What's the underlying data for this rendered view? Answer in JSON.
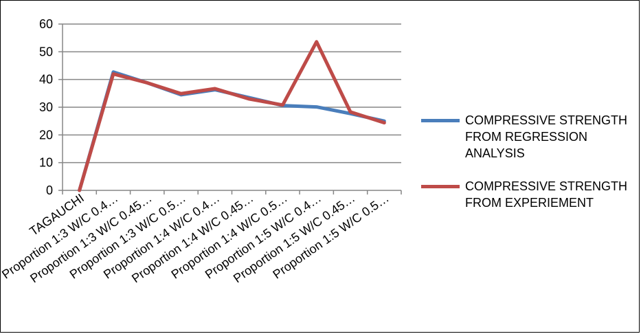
{
  "chart_data": {
    "type": "line",
    "categories": [
      "TAGAUCHI",
      "Proportion 1:3   W/C 0.4…",
      "Proportion 1:3   W/C 0.45…",
      "Proportion 1:3   W/C 0.5…",
      "Proportion 1:4    W/C 0.4…",
      "Proportion 1:4   W/C 0.45…",
      "Proportion 1:4    W/C 0.5…",
      "Proportion 1:5   W/C 0.4…",
      "Proportion 1:5   W/C 0.45…",
      "Proportion 1:5    W/C 0.5…"
    ],
    "series": [
      {
        "name": "COMPRESSIVE STRENGTH FROM REGRESSION ANALYSIS",
        "color": "#4a7ebb",
        "values": [
          0,
          42.7,
          38.8,
          34.5,
          36.3,
          33.5,
          30.6,
          30.1,
          27.7,
          25.0
        ]
      },
      {
        "name": "COMPRESSIVE STRENGTH FROM EXPERIEMENT",
        "color": "#be4b48",
        "values": [
          0,
          42.0,
          38.8,
          34.9,
          36.7,
          33.0,
          30.8,
          53.6,
          28.3,
          24.4
        ]
      }
    ],
    "yticks": [
      "0",
      "10",
      "20",
      "30",
      "40",
      "50",
      "60"
    ],
    "ylim": [
      0,
      60
    ],
    "grid": true,
    "legend": "right"
  }
}
